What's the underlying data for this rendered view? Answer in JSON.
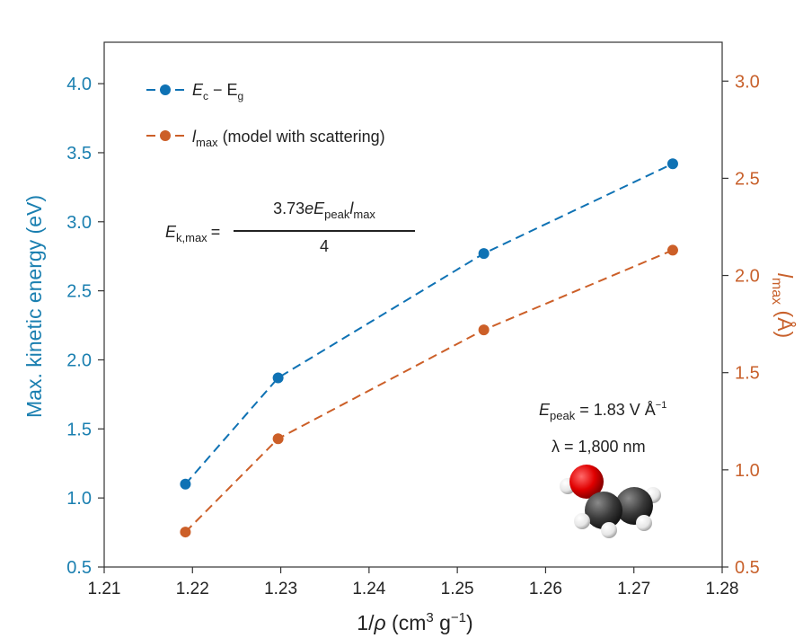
{
  "chart_data": {
    "type": "line",
    "x_label_main": "1/",
    "x_label_rho": "ρ",
    "x_label_unit": " (cm",
    "x_label_exp1": "3",
    "x_label_g": " g",
    "x_label_exp2": "−1",
    "x_label_close": ")",
    "xlim": [
      1.21,
      1.28
    ],
    "x_ticks": [
      "1.21",
      "1.22",
      "1.23",
      "1.24",
      "1.25",
      "1.26",
      "1.27",
      "1.28"
    ],
    "y_left_label": "Max. kinetic energy (eV)",
    "y_left_lim": [
      0.5,
      4.3
    ],
    "y_left_ticks": [
      "0.5",
      "1.0",
      "1.5",
      "2.0",
      "2.5",
      "3.0",
      "3.5",
      "4.0"
    ],
    "y_right_label_main": "l",
    "y_right_label_sub": "max",
    "y_right_label_unit": " (Å)",
    "y_right_lim": [
      0.5,
      3.2
    ],
    "y_right_ticks": [
      "0.5",
      "1.0",
      "1.5",
      "2.0",
      "2.5",
      "3.0"
    ],
    "x": [
      1.2192,
      1.2297,
      1.253,
      1.2744
    ],
    "series": [
      {
        "name_main": "E",
        "name_sub1": "c",
        "name_mid": " − E",
        "name_sub2": "g",
        "axis": "left",
        "color": "#0f72b4",
        "values": [
          1.1,
          1.87,
          2.77,
          3.42
        ]
      },
      {
        "name_main": "l",
        "name_sub1": "max",
        "name_mid": " (model with scattering)",
        "axis": "right",
        "color": "#cc5f28",
        "values": [
          0.68,
          1.16,
          1.72,
          2.13
        ]
      }
    ],
    "formula": {
      "lhs_main": "E",
      "lhs_sub": "k,max",
      "equals": "=",
      "num_a": "3.73",
      "num_e": "eE",
      "num_sub1": "peak",
      "num_l": "l",
      "num_sub2": "max",
      "den": "4"
    },
    "conditions": {
      "epeak_main": "E",
      "epeak_sub": "peak",
      "epeak_val": " = 1.83 V Å",
      "epeak_exp": "−1",
      "lambda": "λ = 1,800 nm"
    },
    "molecule_icon": "ethanol-molecule-icon",
    "colors": {
      "left_axis": "#1a7fb0",
      "right_axis": "#c8612c"
    },
    "legend_position": "top-left",
    "grid": false
  }
}
